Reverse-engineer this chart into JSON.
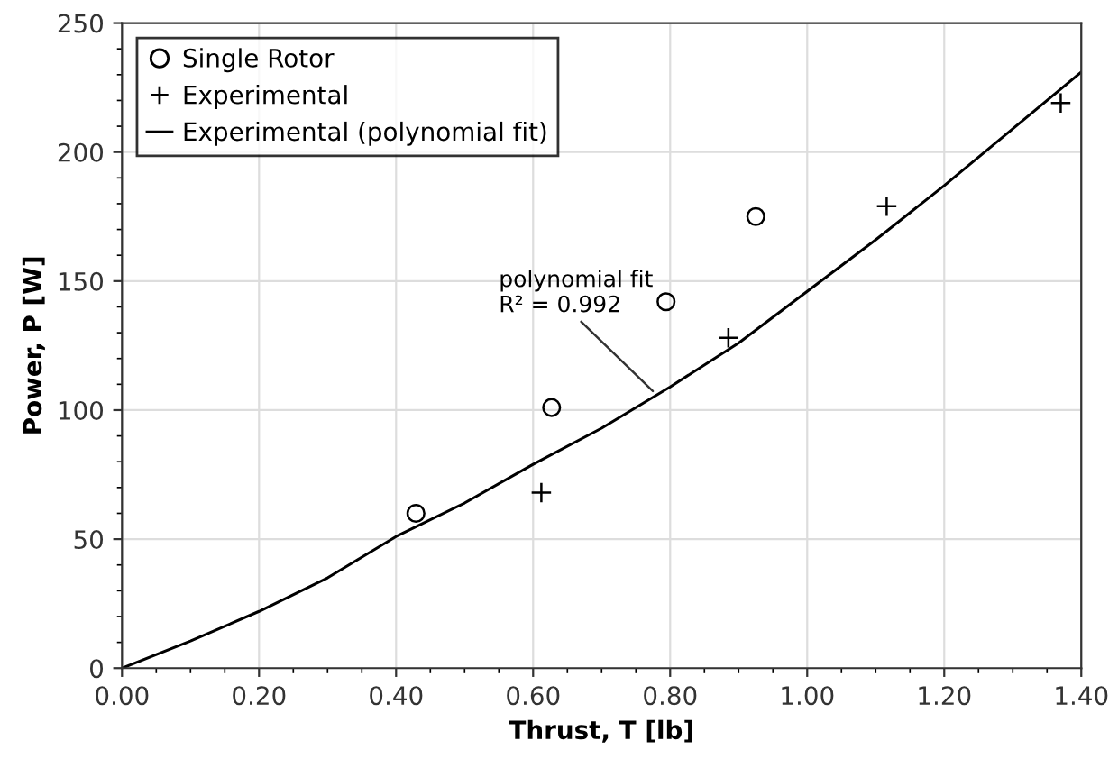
{
  "chart_data": {
    "type": "scatter",
    "xlabel": "Thrust, T [lb]",
    "ylabel": "Power, P [W]",
    "xlim": [
      0,
      1.4
    ],
    "ylim": [
      0,
      250
    ],
    "xticks": [
      {
        "value": 0,
        "label": "0.00"
      },
      {
        "value": 0.2,
        "label": "0.20"
      },
      {
        "value": 0.4,
        "label": "0.40"
      },
      {
        "value": 0.6,
        "label": "0.60"
      },
      {
        "value": 0.8,
        "label": "0.80"
      },
      {
        "value": 1.0,
        "label": "1.00"
      },
      {
        "value": 1.2,
        "label": "1.20"
      },
      {
        "value": 1.4,
        "label": "1.40"
      }
    ],
    "yticks": [
      0,
      50,
      100,
      150,
      200,
      250
    ],
    "grid": true,
    "legend": "top left",
    "series": [
      {
        "name": "Single Rotor",
        "marker": "circle",
        "color": "#000000",
        "x": [
          0.429,
          0.627,
          0.794,
          0.925
        ],
        "values": [
          60,
          101,
          142,
          175
        ]
      },
      {
        "name": "Experimental",
        "marker": "cross",
        "color": "#000000",
        "x": [
          0.612,
          0.885,
          1.116,
          1.37
        ],
        "values": [
          68,
          128,
          179,
          219
        ]
      },
      {
        "name": "Experimental (polynomial fit)",
        "type": "line",
        "marker": "none",
        "color": "#000000",
        "x": [
          0,
          0.1,
          0.2,
          0.3,
          0.4,
          0.5,
          0.6,
          0.7,
          0.8,
          0.9,
          1.0,
          1.1,
          1.2,
          1.3,
          1.4
        ],
        "values": [
          0,
          10.5,
          22,
          35,
          51,
          64,
          79,
          93,
          109,
          126,
          146,
          166,
          187,
          209,
          231
        ]
      }
    ],
    "annotations": [
      {
        "text": "polynomial fit\nR² = 0.992",
        "x": 0.78,
        "y": 106
      }
    ]
  }
}
